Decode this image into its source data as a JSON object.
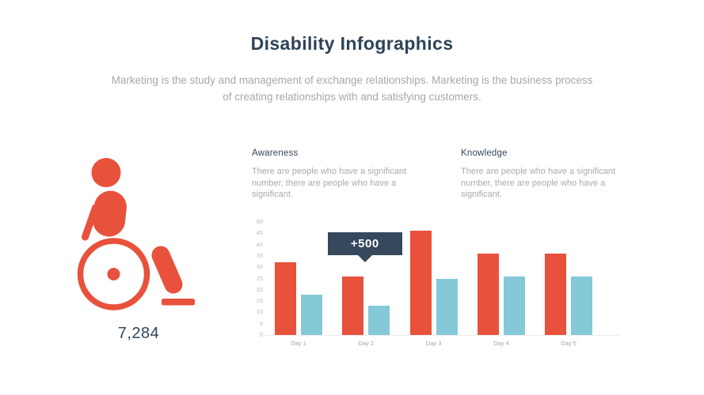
{
  "header": {
    "title": "Disability Infographics",
    "subtitle_line1": "Marketing is the study and management of exchange relationships. Marketing is the business process",
    "subtitle_line2": "of creating relationships with and satisfying customers."
  },
  "figure": {
    "icon": "wheelchair",
    "count": "7,284"
  },
  "sections": [
    {
      "heading": "Awareness",
      "body": "There are people who have a significant number, there are people who have a significant."
    },
    {
      "heading": "Knowledge",
      "body": "There are people who have a significant number, there are people who have a significant."
    }
  ],
  "chart_data": {
    "type": "bar",
    "categories": [
      "Day 1",
      "Day 2",
      "Day 3",
      "Day 4",
      "Day 5"
    ],
    "series": [
      {
        "name": "Awareness",
        "color": "#E8513C",
        "values": [
          32,
          26,
          46,
          36,
          36
        ]
      },
      {
        "name": "Knowledge",
        "color": "#85C9D8",
        "values": [
          18,
          13,
          25,
          26,
          26
        ]
      }
    ],
    "annotation": {
      "label": "+500",
      "category": "Day 2",
      "series": "Awareness"
    },
    "title": "",
    "xlabel": "",
    "ylabel": "",
    "ylim": [
      0,
      50
    ],
    "ytick_step": 5,
    "grid": false,
    "legend": false
  },
  "colors": {
    "accent_red": "#E8513C",
    "accent_teal": "#85C9D8",
    "navy": "#2E4357",
    "callout_bg": "#36485C",
    "text_gray": "#A7AAAD",
    "tick_gray": "#B9BBBD",
    "baseline_gray": "#EBEBEB"
  }
}
